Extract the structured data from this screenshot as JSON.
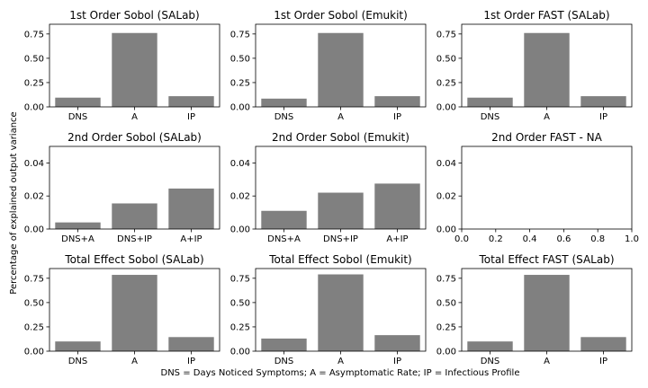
{
  "figure": {
    "ylabel": "Percentage of explained output variance",
    "caption": "DNS = Days Noticed Symptoms; A = Asymptomatic Rate; IP = Infectious Profile"
  },
  "chart_data": [
    {
      "type": "bar",
      "title": "1st Order Sobol (SALab)",
      "categories": [
        "DNS",
        "A",
        "IP"
      ],
      "values": [
        0.095,
        0.76,
        0.11
      ],
      "ylim": [
        0,
        0.85
      ],
      "yticks": [
        "0.00",
        "0.25",
        "0.50",
        "0.75"
      ],
      "grid": false
    },
    {
      "type": "bar",
      "title": "1st Order Sobol (Emukit)",
      "categories": [
        "DNS",
        "A",
        "IP"
      ],
      "values": [
        0.085,
        0.76,
        0.11
      ],
      "ylim": [
        0,
        0.85
      ],
      "yticks": [
        "0.00",
        "0.25",
        "0.50",
        "0.75"
      ],
      "grid": false
    },
    {
      "type": "bar",
      "title": "1st Order FAST (SALab)",
      "categories": [
        "DNS",
        "A",
        "IP"
      ],
      "values": [
        0.095,
        0.76,
        0.11
      ],
      "ylim": [
        0,
        0.85
      ],
      "yticks": [
        "0.00",
        "0.25",
        "0.50",
        "0.75"
      ],
      "grid": false
    },
    {
      "type": "bar",
      "title": "2nd Order Sobol (SALab)",
      "categories": [
        "DNS+A",
        "DNS+IP",
        "A+IP"
      ],
      "values": [
        0.004,
        0.0155,
        0.0245
      ],
      "ylim": [
        0,
        0.05
      ],
      "yticks": [
        "0.00",
        "0.02",
        "0.04"
      ],
      "grid": false
    },
    {
      "type": "bar",
      "title": "2nd Order Sobol (Emukit)",
      "categories": [
        "DNS+A",
        "DNS+IP",
        "A+IP"
      ],
      "values": [
        0.011,
        0.022,
        0.0275
      ],
      "ylim": [
        0,
        0.05
      ],
      "yticks": [
        "0.00",
        "0.02",
        "0.04"
      ],
      "grid": false
    },
    {
      "type": "bar",
      "title": "2nd Order FAST - NA",
      "categories": [],
      "values": [],
      "xlim": [
        0,
        1
      ],
      "xticks": [
        "0.0",
        "0.2",
        "0.4",
        "0.6",
        "0.8",
        "1.0"
      ],
      "ylim": [
        0,
        0.05
      ],
      "yticks": [
        "0.00",
        "0.02",
        "0.04"
      ],
      "grid": false
    },
    {
      "type": "bar",
      "title": "Total Effect Sobol (SALab)",
      "categories": [
        "DNS",
        "A",
        "IP"
      ],
      "values": [
        0.1,
        0.785,
        0.145
      ],
      "ylim": [
        0,
        0.85
      ],
      "yticks": [
        "0.00",
        "0.25",
        "0.50",
        "0.75"
      ],
      "grid": false
    },
    {
      "type": "bar",
      "title": "Total Effect Sobol (Emukit)",
      "categories": [
        "DNS",
        "A",
        "IP"
      ],
      "values": [
        0.13,
        0.79,
        0.165
      ],
      "ylim": [
        0,
        0.85
      ],
      "yticks": [
        "0.00",
        "0.25",
        "0.50",
        "0.75"
      ],
      "grid": false
    },
    {
      "type": "bar",
      "title": "Total Effect FAST (SALab)",
      "categories": [
        "DNS",
        "A",
        "IP"
      ],
      "values": [
        0.1,
        0.785,
        0.145
      ],
      "ylim": [
        0,
        0.85
      ],
      "yticks": [
        "0.00",
        "0.25",
        "0.50",
        "0.75"
      ],
      "grid": false
    }
  ],
  "colors": {
    "bar": "#808080",
    "axis": "#000000",
    "background": "#ffffff"
  }
}
